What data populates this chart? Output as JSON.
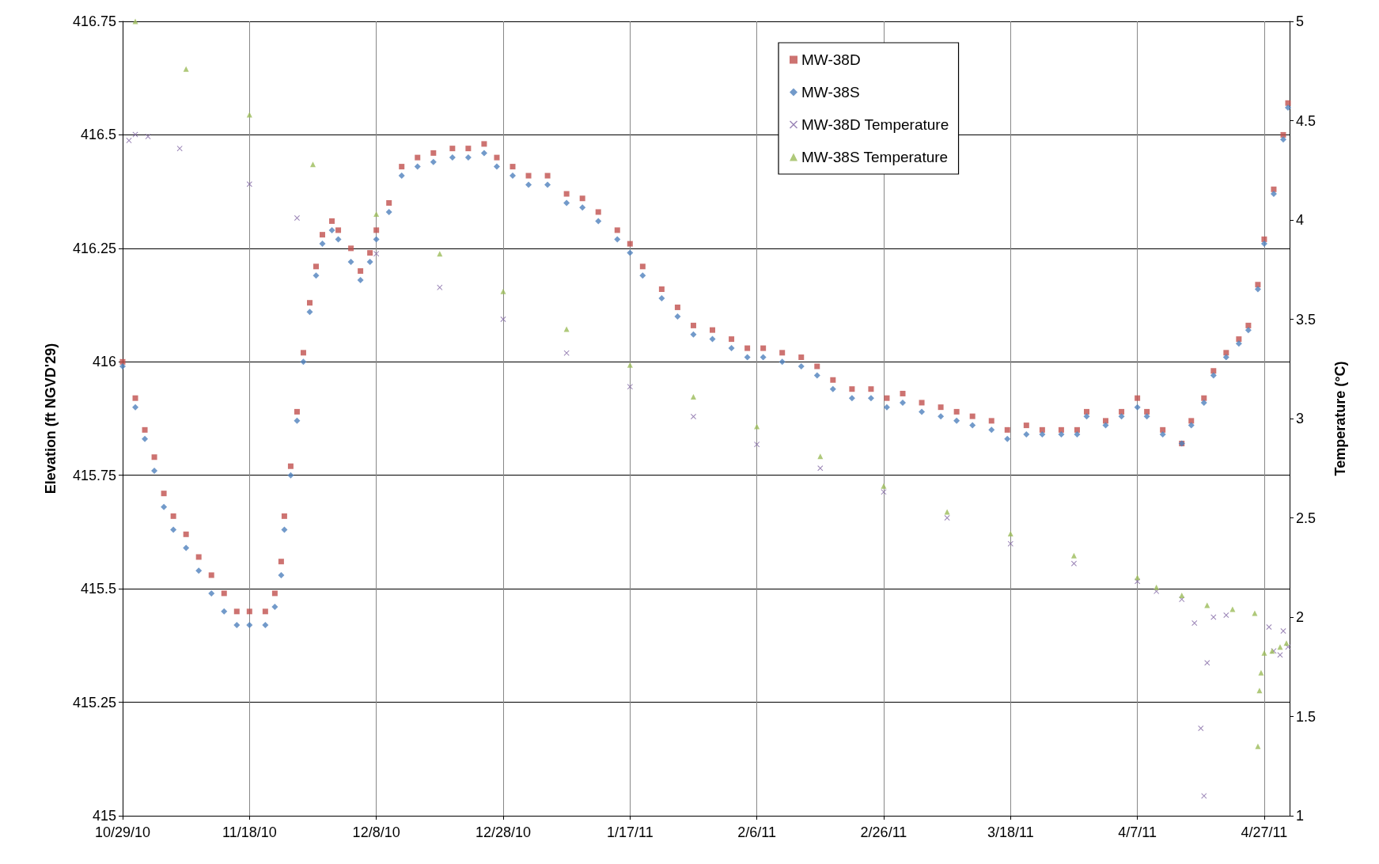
{
  "chart_data": {
    "type": "scatter",
    "ylabel": "Elevation (ft NGVD'29)",
    "y2label": "Temperature (°C)",
    "legend": "top right",
    "grid": true,
    "xlim": [
      "2010-10-29",
      "2011-05-01"
    ],
    "xticks": [
      {
        "value": "2010-10-29",
        "label": "10/29/10"
      },
      {
        "value": "2010-11-18",
        "label": "11/18/10"
      },
      {
        "value": "2010-12-08",
        "label": "12/8/10"
      },
      {
        "value": "2010-12-28",
        "label": "12/28/10"
      },
      {
        "value": "2011-01-17",
        "label": "1/17/11"
      },
      {
        "value": "2011-02-06",
        "label": "2/6/11"
      },
      {
        "value": "2011-02-26",
        "label": "2/26/11"
      },
      {
        "value": "2011-03-18",
        "label": "3/18/11"
      },
      {
        "value": "2011-04-07",
        "label": "4/7/11"
      },
      {
        "value": "2011-04-27",
        "label": "4/27/11"
      }
    ],
    "ylim": [
      415,
      416.75
    ],
    "yticks": [
      415,
      415.25,
      415.5,
      415.75,
      416,
      416.25,
      416.5,
      416.75
    ],
    "y2lim": [
      1,
      5
    ],
    "y2ticks": [
      1,
      1.5,
      2,
      2.5,
      3,
      3.5,
      4,
      4.5,
      5
    ],
    "series": [
      {
        "name": "MW-38D",
        "color": "#c0504d",
        "marker": "square",
        "x": [
          "2010-10-29",
          "2010-10-31",
          "2010-11-01T12:00",
          "2010-11-03",
          "2010-11-04T12:00",
          "2010-11-06",
          "2010-11-08",
          "2010-11-10",
          "2010-11-12",
          "2010-11-14",
          "2010-11-16",
          "2010-11-18",
          "2010-11-20T12:00",
          "2010-11-22",
          "2010-11-23",
          "2010-11-23T12:00",
          "2010-11-24T12:00",
          "2010-11-25T12:00",
          "2010-11-26T12:00",
          "2010-11-27T12:00",
          "2010-11-28T12:00",
          "2010-11-29T12:00",
          "2010-12-01",
          "2010-12-02",
          "2010-12-04",
          "2010-12-05T12:00",
          "2010-12-07",
          "2010-12-08",
          "2010-12-10",
          "2010-12-12",
          "2010-12-14T12:00",
          "2010-12-17",
          "2010-12-20",
          "2010-12-22T12:00",
          "2010-12-25",
          "2010-12-27",
          "2010-12-29T12:00",
          "2011-01-01",
          "2011-01-04",
          "2011-01-07",
          "2011-01-09T12:00",
          "2011-01-12",
          "2011-01-15",
          "2011-01-17",
          "2011-01-19",
          "2011-01-22",
          "2011-01-24T12:00",
          "2011-01-27",
          "2011-01-30",
          "2011-02-02",
          "2011-02-04T12:00",
          "2011-02-07",
          "2011-02-10",
          "2011-02-13",
          "2011-02-15T12:00",
          "2011-02-18",
          "2011-02-21",
          "2011-02-24",
          "2011-02-26T12:00",
          "2011-03-01",
          "2011-03-04",
          "2011-03-07",
          "2011-03-09T12:00",
          "2011-03-12",
          "2011-03-15",
          "2011-03-17T12:00",
          "2011-03-20T12:00",
          "2011-03-23",
          "2011-03-26",
          "2011-03-28T12:00",
          "2011-03-30",
          "2011-04-02",
          "2011-04-04T12:00",
          "2011-04-07",
          "2011-04-08T12:00",
          "2011-04-11",
          "2011-04-14",
          "2011-04-15T12:00",
          "2011-04-17T12:00",
          "2011-04-19",
          "2011-04-21",
          "2011-04-23",
          "2011-04-24T12:00",
          "2011-04-26",
          "2011-04-27",
          "2011-04-28T12:00",
          "2011-04-30",
          "2011-04-30T18:00"
        ],
        "values": [
          416.0,
          415.92,
          415.85,
          415.79,
          415.71,
          415.66,
          415.62,
          415.57,
          415.53,
          415.49,
          415.45,
          415.45,
          415.45,
          415.49,
          415.56,
          415.66,
          415.77,
          415.89,
          416.02,
          416.13,
          416.21,
          416.28,
          416.31,
          416.29,
          416.25,
          416.2,
          416.24,
          416.29,
          416.35,
          416.43,
          416.45,
          416.46,
          416.47,
          416.47,
          416.48,
          416.45,
          416.43,
          416.41,
          416.41,
          416.37,
          416.36,
          416.33,
          416.29,
          416.26,
          416.21,
          416.16,
          416.12,
          416.08,
          416.07,
          416.05,
          416.03,
          416.03,
          416.02,
          416.01,
          415.99,
          415.96,
          415.94,
          415.94,
          415.92,
          415.93,
          415.91,
          415.9,
          415.89,
          415.88,
          415.87,
          415.85,
          415.86,
          415.85,
          415.85,
          415.85,
          415.89,
          415.87,
          415.89,
          415.92,
          415.89,
          415.85,
          415.82,
          415.87,
          415.92,
          415.98,
          416.02,
          416.05,
          416.08,
          416.17,
          416.27,
          416.38,
          416.5,
          416.57
        ]
      },
      {
        "name": "MW-38S",
        "color": "#4f81bd",
        "marker": "diamond",
        "x": [
          "2010-10-29",
          "2010-10-31",
          "2010-11-01T12:00",
          "2010-11-03",
          "2010-11-04T12:00",
          "2010-11-06",
          "2010-11-08",
          "2010-11-10",
          "2010-11-12",
          "2010-11-14",
          "2010-11-16",
          "2010-11-18",
          "2010-11-20T12:00",
          "2010-11-22",
          "2010-11-23",
          "2010-11-23T12:00",
          "2010-11-24T12:00",
          "2010-11-25T12:00",
          "2010-11-26T12:00",
          "2010-11-27T12:00",
          "2010-11-28T12:00",
          "2010-11-29T12:00",
          "2010-12-01",
          "2010-12-02",
          "2010-12-04",
          "2010-12-05T12:00",
          "2010-12-07",
          "2010-12-08",
          "2010-12-10",
          "2010-12-12",
          "2010-12-14T12:00",
          "2010-12-17",
          "2010-12-20",
          "2010-12-22T12:00",
          "2010-12-25",
          "2010-12-27",
          "2010-12-29T12:00",
          "2011-01-01",
          "2011-01-04",
          "2011-01-07",
          "2011-01-09T12:00",
          "2011-01-12",
          "2011-01-15",
          "2011-01-17",
          "2011-01-19",
          "2011-01-22",
          "2011-01-24T12:00",
          "2011-01-27",
          "2011-01-30",
          "2011-02-02",
          "2011-02-04T12:00",
          "2011-02-07",
          "2011-02-10",
          "2011-02-13",
          "2011-02-15T12:00",
          "2011-02-18",
          "2011-02-21",
          "2011-02-24",
          "2011-02-26T12:00",
          "2011-03-01",
          "2011-03-04",
          "2011-03-07",
          "2011-03-09T12:00",
          "2011-03-12",
          "2011-03-15",
          "2011-03-17T12:00",
          "2011-03-20T12:00",
          "2011-03-23",
          "2011-03-26",
          "2011-03-28T12:00",
          "2011-03-30",
          "2011-04-02",
          "2011-04-04T12:00",
          "2011-04-07",
          "2011-04-08T12:00",
          "2011-04-11",
          "2011-04-14",
          "2011-04-15T12:00",
          "2011-04-17T12:00",
          "2011-04-19",
          "2011-04-21",
          "2011-04-23",
          "2011-04-24T12:00",
          "2011-04-26",
          "2011-04-27",
          "2011-04-28T12:00",
          "2011-04-30",
          "2011-04-30T18:00"
        ],
        "values": [
          415.99,
          415.9,
          415.83,
          415.76,
          415.68,
          415.63,
          415.59,
          415.54,
          415.49,
          415.45,
          415.42,
          415.42,
          415.42,
          415.46,
          415.53,
          415.63,
          415.75,
          415.87,
          416.0,
          416.11,
          416.19,
          416.26,
          416.29,
          416.27,
          416.22,
          416.18,
          416.22,
          416.27,
          416.33,
          416.41,
          416.43,
          416.44,
          416.45,
          416.45,
          416.46,
          416.43,
          416.41,
          416.39,
          416.39,
          416.35,
          416.34,
          416.31,
          416.27,
          416.24,
          416.19,
          416.14,
          416.1,
          416.06,
          416.05,
          416.03,
          416.01,
          416.01,
          416.0,
          415.99,
          415.97,
          415.94,
          415.92,
          415.92,
          415.9,
          415.91,
          415.89,
          415.88,
          415.87,
          415.86,
          415.85,
          415.83,
          415.84,
          415.84,
          415.84,
          415.84,
          415.88,
          415.86,
          415.88,
          415.9,
          415.88,
          415.84,
          415.82,
          415.86,
          415.91,
          415.97,
          416.01,
          416.04,
          416.07,
          416.16,
          416.26,
          416.37,
          416.49,
          416.56
        ]
      },
      {
        "name": "MW-38D Temperature",
        "color": "#8064a2",
        "marker": "cross",
        "axis": "y2",
        "x": [
          "2010-10-30",
          "2010-10-31",
          "2010-11-02",
          "2010-11-07",
          "2010-11-18",
          "2010-11-25T12:00",
          "2010-12-08",
          "2010-12-18",
          "2010-12-28",
          "2011-01-07",
          "2011-01-17",
          "2011-01-27",
          "2011-02-06",
          "2011-02-16",
          "2011-02-26",
          "2011-03-08",
          "2011-03-18",
          "2011-03-28",
          "2011-04-07",
          "2011-04-10",
          "2011-04-14",
          "2011-04-16",
          "2011-04-17",
          "2011-04-17T12:00",
          "2011-04-18",
          "2011-04-19",
          "2011-04-21",
          "2011-04-27T18:00",
          "2011-04-28T12:00",
          "2011-04-29T12:00",
          "2011-04-30",
          "2011-04-30T18:00"
        ],
        "values": [
          4.4,
          4.43,
          4.42,
          4.36,
          4.18,
          4.01,
          3.83,
          3.66,
          3.5,
          3.33,
          3.16,
          3.01,
          2.87,
          2.75,
          2.63,
          2.5,
          2.37,
          2.27,
          2.18,
          2.13,
          2.09,
          1.97,
          1.44,
          1.1,
          1.77,
          2.0,
          2.01,
          1.95,
          1.83,
          1.81,
          1.93,
          1.85
        ]
      },
      {
        "name": "MW-38S Temperature",
        "color": "#9bbb59",
        "marker": "triangle",
        "axis": "y2",
        "x": [
          "2010-10-31",
          "2010-11-08",
          "2010-11-18",
          "2010-11-28",
          "2010-12-08",
          "2010-12-18",
          "2010-12-28",
          "2011-01-07",
          "2011-01-17",
          "2011-01-27",
          "2011-02-06",
          "2011-02-16",
          "2011-02-26",
          "2011-03-08",
          "2011-03-18",
          "2011-03-28",
          "2011-04-07",
          "2011-04-10",
          "2011-04-14",
          "2011-04-18",
          "2011-04-22",
          "2011-04-25T12:00",
          "2011-04-26",
          "2011-04-26T06:00",
          "2011-04-26T12:00",
          "2011-04-27",
          "2011-04-28T06:00",
          "2011-04-29T12:00",
          "2011-04-30T12:00"
        ],
        "values": [
          5.0,
          4.76,
          4.53,
          4.28,
          4.03,
          3.83,
          3.64,
          3.45,
          3.27,
          3.11,
          2.96,
          2.81,
          2.66,
          2.53,
          2.42,
          2.31,
          2.2,
          2.15,
          2.11,
          2.06,
          2.04,
          2.02,
          1.35,
          1.63,
          1.72,
          1.82,
          1.83,
          1.85,
          1.87
        ]
      }
    ]
  }
}
